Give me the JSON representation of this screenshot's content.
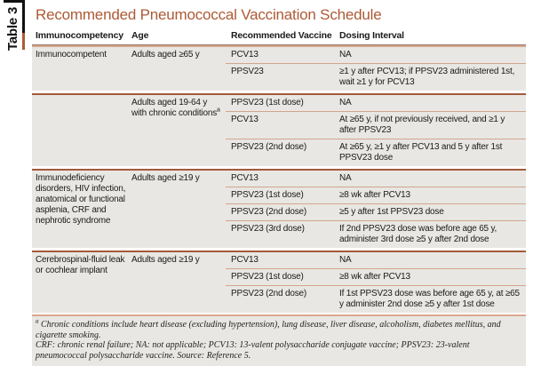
{
  "table_label": "Table 3",
  "title": "Recommended Pneumococcal Vaccination Schedule",
  "colors": {
    "accent_title": "#ad5a35",
    "row_background": "#e8e7e3",
    "thin_separator": "#d3a58e",
    "group_rule": "#a4593a",
    "spine_rule": "#111111"
  },
  "columns": [
    "Immunocompetency",
    "Age",
    "Recommended Vaccine",
    "Dosing Interval"
  ],
  "groups": [
    {
      "immunocompetency": "Immunocompetent",
      "age": "Adults aged ≥65 y",
      "age_sup": "",
      "rows": [
        {
          "vaccine": "PCV13",
          "interval": "NA"
        },
        {
          "vaccine": "PPSV23",
          "interval": "≥1 y after PCV13; if PPSV23 administered 1st, wait ≥1 y for PCV13"
        }
      ]
    },
    {
      "immunocompetency": "",
      "age": "Adults aged 19-64 y with chronic conditions",
      "age_sup": "a",
      "rows": [
        {
          "vaccine": "PPSV23 (1st dose)",
          "interval": "NA"
        },
        {
          "vaccine": "PCV13",
          "interval": "At ≥65 y, if not previously received, and ≥1 y after PPSV23"
        },
        {
          "vaccine": "PPSV23 (2nd dose)",
          "interval": "At ≥65 y, ≥1 y after PCV13 and 5 y after 1st PPSV23 dose"
        }
      ]
    },
    {
      "immunocompetency": "Immunodeficiency disorders, HIV infection, anatomical or functional asplenia, CRF and nephrotic syndrome",
      "age": "Adults aged ≥19 y",
      "age_sup": "",
      "rows": [
        {
          "vaccine": "PCV13",
          "interval": "NA"
        },
        {
          "vaccine": "PPSV23 (1st dose)",
          "interval": "≥8 wk after PCV13"
        },
        {
          "vaccine": "PPSV23 (2nd dose)",
          "interval": "≥5 y after 1st PPSV23 dose"
        },
        {
          "vaccine": "PPSV23 (3rd dose)",
          "interval": "If 2nd PPSV23 dose was before age 65 y, administer 3rd dose ≥5 y after 2nd dose"
        }
      ]
    },
    {
      "immunocompetency": "Cerebrospinal-fluid leak or cochlear implant",
      "age": "Adults aged ≥19 y",
      "age_sup": "",
      "rows": [
        {
          "vaccine": "PCV13",
          "interval": "NA"
        },
        {
          "vaccine": "PPSV23 (1st dose)",
          "interval": "≥8 wk after PCV13"
        },
        {
          "vaccine": "PPSV23 (2nd dose)",
          "interval": "If 1st PPSV23 dose was before age 65 y, at ≥65 y administer 2nd dose ≥5 y after 1st dose"
        }
      ]
    }
  ],
  "footnotes": {
    "sup": "a",
    "note1": "Chronic conditions include heart disease (excluding hypertension), lung disease, liver disease, alcoholism, diabetes mellitus, and cigarette smoking.",
    "note2": "CRF: chronic renal failure; NA: not applicable; PCV13: 13-valent polysaccharide conjugate vaccine; PPSV23: 23-valent pneumococcal polysaccharide vaccine. Source: Reference 5."
  }
}
